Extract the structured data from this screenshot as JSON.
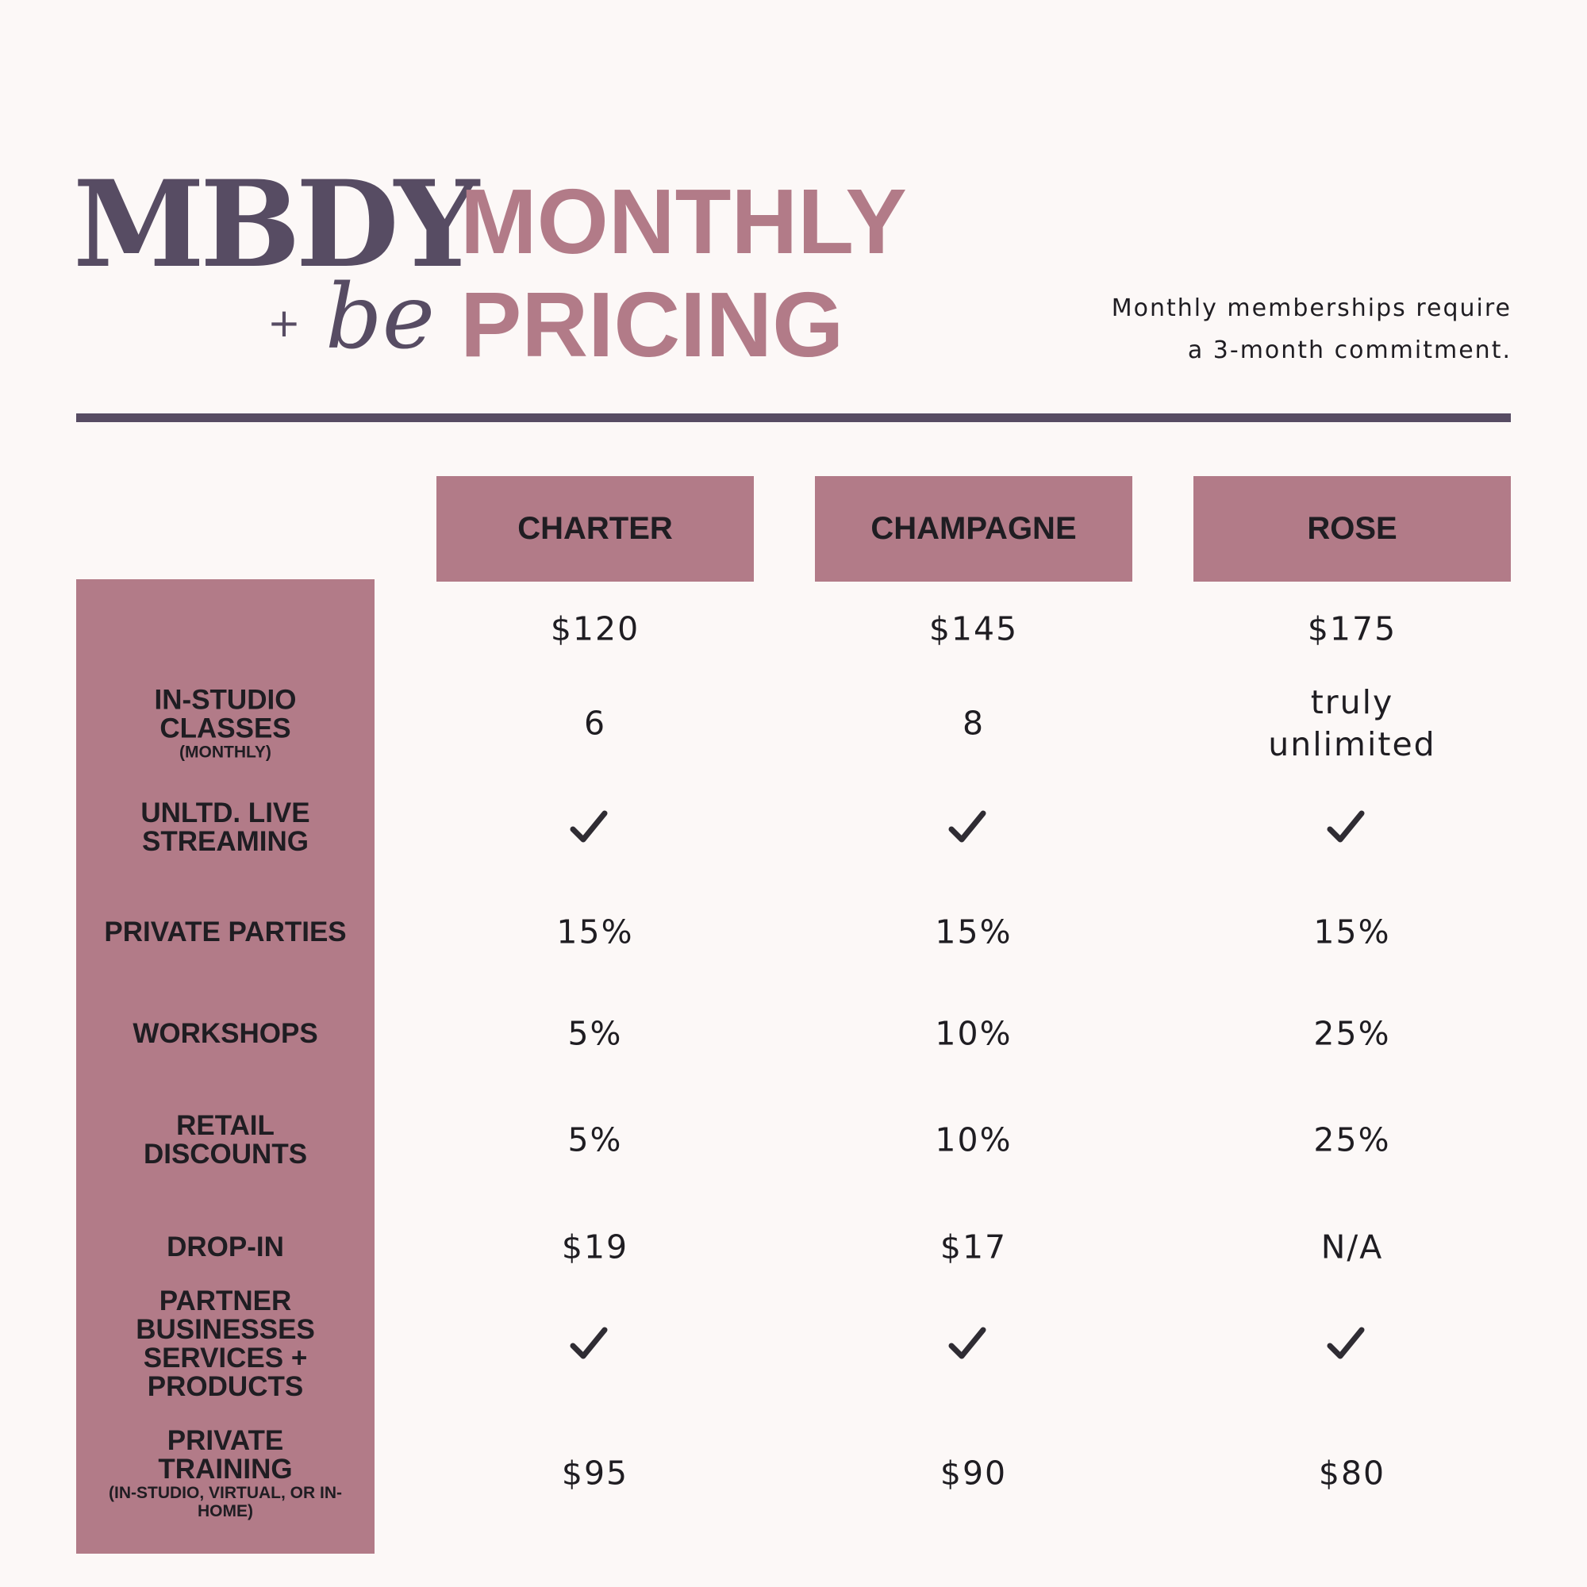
{
  "logo": {
    "mbdy": "MBDY",
    "plus": "+",
    "be": "be"
  },
  "title": {
    "line1": "MONTHLY",
    "line2": "PRICING"
  },
  "note": {
    "line1": "Monthly memberships require",
    "line2": "a 3-month commitment."
  },
  "plans": [
    "CHARTER",
    "CHAMPAGNE",
    "ROSE"
  ],
  "price_row": [
    "$120",
    "$145",
    "$175"
  ],
  "rows": [
    {
      "label": "IN-STUDIO CLASSES",
      "sub": "(MONTHLY)",
      "values": [
        "6",
        "8",
        "truly unlimited"
      ]
    },
    {
      "label": "UNLTD. LIVE STREAMING",
      "sub": "",
      "values": [
        "✓",
        "✓",
        "✓"
      ]
    },
    {
      "label": "PRIVATE PARTIES",
      "sub": "",
      "values": [
        "15%",
        "15%",
        "15%"
      ]
    },
    {
      "label": "WORKSHOPS",
      "sub": "",
      "values": [
        "5%",
        "10%",
        "25%"
      ]
    },
    {
      "label": "RETAIL DISCOUNTS",
      "sub": "",
      "values": [
        "5%",
        "10%",
        "25%"
      ]
    },
    {
      "label": "DROP-IN",
      "sub": "",
      "values": [
        "$19",
        "$17",
        "N/A"
      ]
    },
    {
      "label": "PARTNER BUSINESSES SERVICES + PRODUCTS",
      "sub": "",
      "values": [
        "✓",
        "✓",
        "✓"
      ]
    },
    {
      "label": "PRIVATE TRAINING",
      "sub": "(IN-STUDIO, VIRTUAL, OR IN-HOME)",
      "values": [
        "$95",
        "$90",
        "$80"
      ]
    }
  ],
  "colors": {
    "background": "#fcf8f7",
    "accent": "#b27b88",
    "dark": "#574c63",
    "text": "#1f1d22"
  },
  "icons": {
    "included": "checkmark-icon"
  }
}
